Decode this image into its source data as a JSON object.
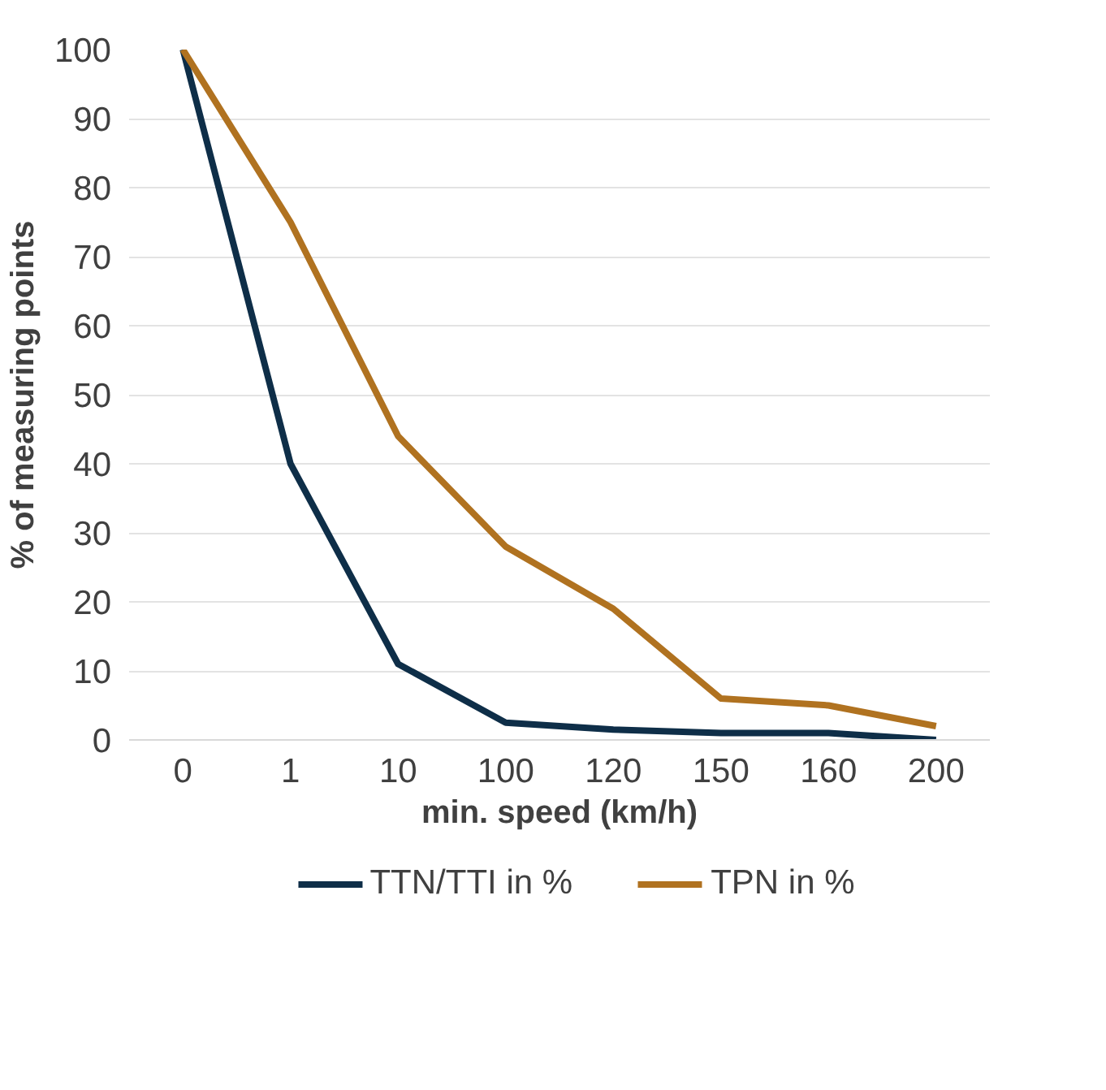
{
  "chart_data": {
    "type": "line",
    "xlabel": "min. speed (km/h)",
    "ylabel": "% of measuring points",
    "categories": [
      "0",
      "1",
      "10",
      "100",
      "120",
      "150",
      "160",
      "200"
    ],
    "series": [
      {
        "name": "TTN/TTI in %",
        "color": "#0e2e48",
        "values": [
          100,
          40,
          11,
          2.5,
          1.5,
          1,
          1,
          0
        ]
      },
      {
        "name": "TPN in %",
        "color": "#b07220",
        "values": [
          100,
          75,
          44,
          28,
          19,
          6,
          5,
          2
        ]
      }
    ],
    "ylim": [
      0,
      100
    ],
    "yticks": [
      0,
      10,
      20,
      30,
      40,
      50,
      60,
      70,
      80,
      90,
      100
    ],
    "grid": "y",
    "legend": "bottom",
    "marker": "none",
    "line_style": "solid"
  }
}
